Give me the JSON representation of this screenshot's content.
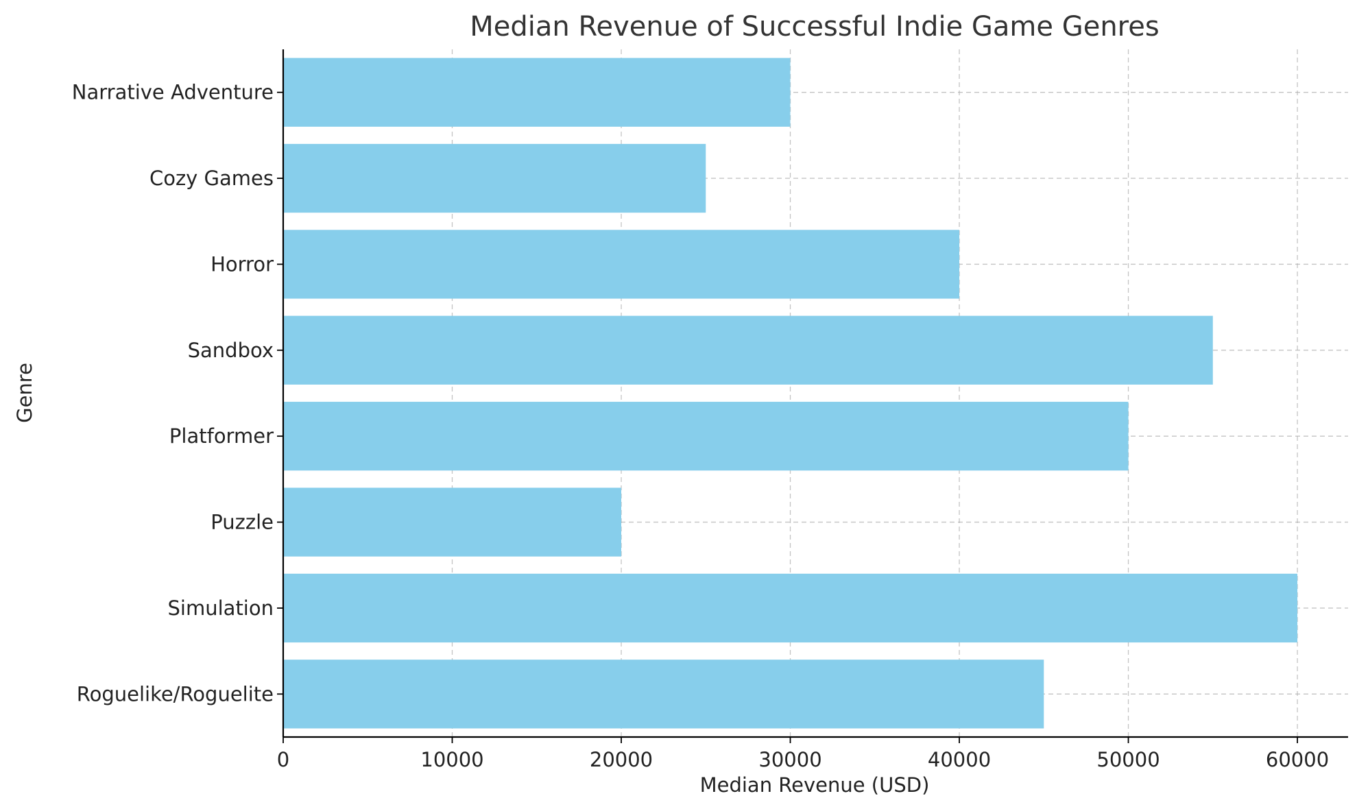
{
  "chart_data": {
    "type": "bar",
    "orientation": "horizontal",
    "title": "Median Revenue of Successful Indie Game Genres",
    "xlabel": "Median Revenue (USD)",
    "ylabel": "Genre",
    "categories": [
      "Roguelike/Roguelite",
      "Simulation",
      "Puzzle",
      "Platformer",
      "Sandbox",
      "Horror",
      "Cozy Games",
      "Narrative Adventure"
    ],
    "values": [
      45000,
      60000,
      20000,
      50000,
      55000,
      40000,
      25000,
      30000
    ],
    "xlim": [
      0,
      63000
    ],
    "xticks": [
      0,
      10000,
      20000,
      30000,
      40000,
      50000,
      60000
    ],
    "xtick_labels": [
      "0",
      "10000",
      "20000",
      "30000",
      "40000",
      "50000",
      "60000"
    ],
    "grid": true,
    "bar_color": "#87CEEB"
  }
}
